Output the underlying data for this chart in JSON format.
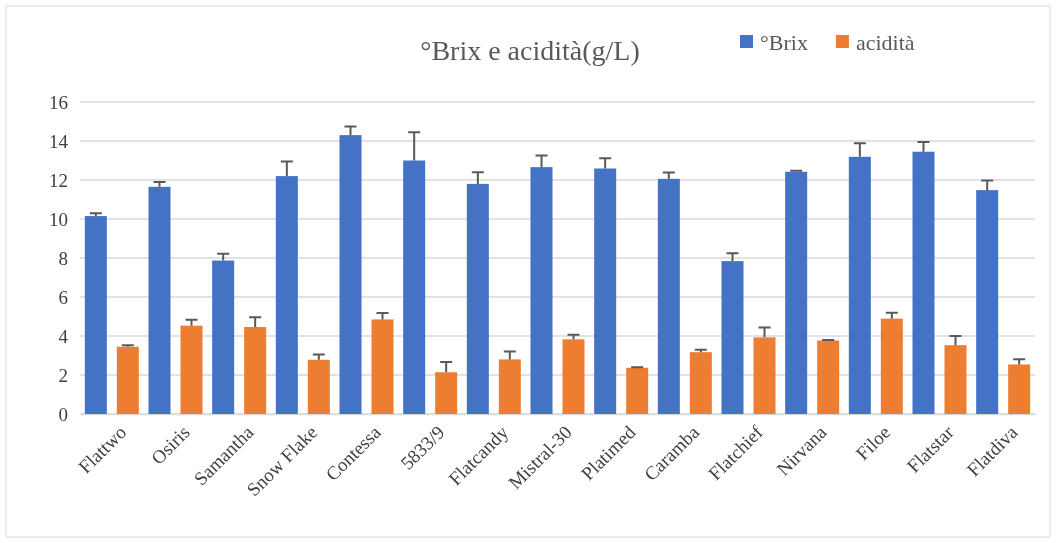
{
  "chart_data": {
    "type": "bar",
    "title": "°Brix e acidità(g/L)",
    "categories": [
      "Flattwo",
      "Osiris",
      "Samantha",
      "Snow Flake",
      "Contessa",
      "5833/9",
      "Flatcandy",
      "Mistral-30",
      "Platimed",
      "Caramba",
      "Flatchief",
      "Nirvana",
      "Filoe",
      "Flatstar",
      "Flatdiva"
    ],
    "series": [
      {
        "name": "°Brix",
        "color": "#4472c4",
        "values": [
          10.15,
          11.65,
          7.87,
          12.2,
          14.3,
          13.0,
          11.8,
          12.66,
          12.59,
          12.06,
          7.84,
          12.42,
          13.19,
          13.45,
          11.48
        ],
        "errors": [
          [
            10.15,
            10.3
          ],
          [
            11.65,
            11.9
          ],
          [
            7.87,
            8.22
          ],
          [
            12.2,
            12.95
          ],
          [
            14.3,
            14.75
          ],
          [
            13.0,
            14.45
          ],
          [
            11.8,
            12.4
          ],
          [
            12.66,
            13.26
          ],
          [
            12.59,
            13.12
          ],
          [
            12.06,
            12.38
          ],
          [
            7.84,
            8.24
          ],
          [
            12.42,
            12.47
          ],
          [
            13.19,
            13.89
          ],
          [
            13.45,
            13.95
          ],
          [
            11.48,
            11.98
          ]
        ]
      },
      {
        "name": "acidità",
        "color": "#ed7d31",
        "values": [
          3.45,
          4.53,
          4.46,
          2.78,
          4.85,
          2.14,
          2.8,
          3.83,
          2.37,
          3.17,
          3.93,
          3.77,
          4.89,
          3.53,
          2.54
        ],
        "errors": [
          [
            3.45,
            3.53
          ],
          [
            4.53,
            4.83
          ],
          [
            4.46,
            4.96
          ],
          [
            2.78,
            3.05
          ],
          [
            4.85,
            5.18
          ],
          [
            2.14,
            2.67
          ],
          [
            2.8,
            3.2
          ],
          [
            3.83,
            4.07
          ],
          [
            2.37,
            2.4
          ],
          [
            3.17,
            3.29
          ],
          [
            3.93,
            4.43
          ],
          [
            3.77,
            3.8
          ],
          [
            4.89,
            5.19
          ],
          [
            3.53,
            4.0
          ],
          [
            2.54,
            2.81
          ]
        ]
      }
    ],
    "ylim": [
      0,
      16
    ],
    "yticks": [
      0,
      2,
      4,
      6,
      8,
      10,
      12,
      14,
      16
    ],
    "grid": "y",
    "legend": "top right"
  }
}
